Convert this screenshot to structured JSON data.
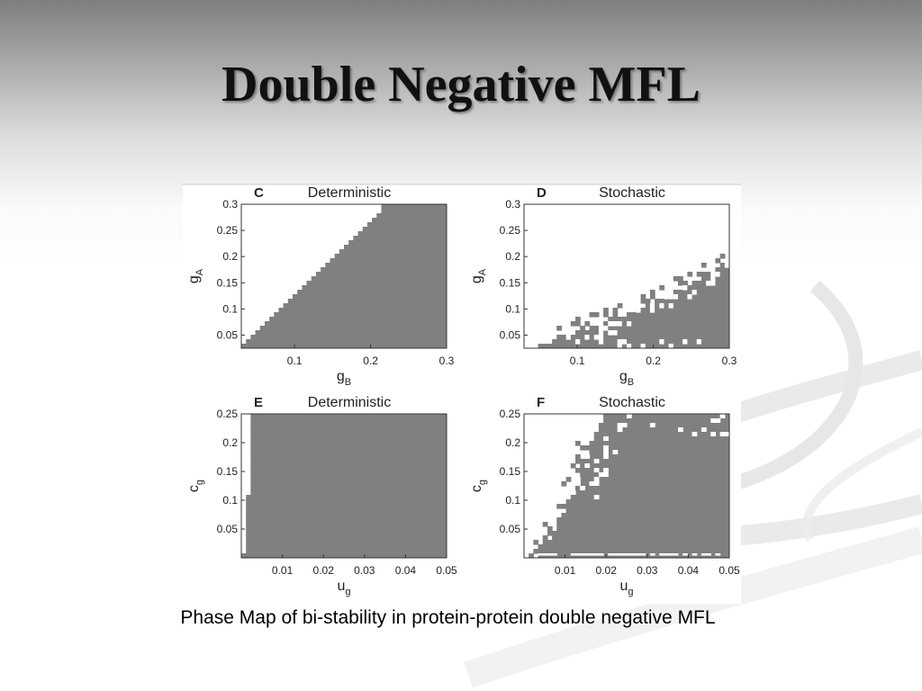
{
  "slide": {
    "title": "Double Negative MFL",
    "caption": "Phase Map of bi-stability in protein-protein double negative MFL"
  },
  "colors": {
    "region": "#808080",
    "frame": "#333333",
    "background": "#ffffff"
  },
  "chart_data": [
    {
      "type": "heatmap",
      "panel": "C",
      "title": "Deterministic",
      "xlabel": {
        "base": "g",
        "sub": "B"
      },
      "ylabel": {
        "base": "g",
        "sub": "A"
      },
      "xlim": [
        0.03,
        0.3
      ],
      "ylim": [
        0.025,
        0.3
      ],
      "xticks": [
        "0.1",
        "0.2",
        "0.3"
      ],
      "xtick_values": [
        0.1,
        0.2,
        0.3
      ],
      "yticks": [
        "0.05",
        "0.1",
        "0.15",
        "0.2",
        "0.25",
        "0.3"
      ],
      "ytick_values": [
        0.05,
        0.1,
        0.15,
        0.2,
        0.25,
        0.3
      ],
      "region": "bistable region (gray) below boundary",
      "boundary_x": [
        0.03,
        0.22
      ],
      "boundary_y": [
        0.025,
        0.3
      ]
    },
    {
      "type": "heatmap",
      "panel": "D",
      "title": "Stochastic",
      "xlabel": {
        "base": "g",
        "sub": "B"
      },
      "ylabel": {
        "base": "g",
        "sub": "A"
      },
      "xlim": [
        0.03,
        0.3
      ],
      "ylim": [
        0.025,
        0.3
      ],
      "xticks": [
        "0.1",
        "0.2",
        "0.3"
      ],
      "xtick_values": [
        0.1,
        0.2,
        0.3
      ],
      "yticks": [
        "0.05",
        "0.1",
        "0.15",
        "0.2",
        "0.25",
        "0.3"
      ],
      "ytick_values": [
        0.05,
        0.1,
        0.15,
        0.2,
        0.25,
        0.3
      ],
      "region": "bistable region (gray) below noisy boundary",
      "boundary_x": [
        0.05,
        0.15,
        0.25,
        0.3
      ],
      "boundary_y": [
        0.03,
        0.08,
        0.15,
        0.19
      ]
    },
    {
      "type": "heatmap",
      "panel": "E",
      "title": "Deterministic",
      "xlabel": {
        "base": "u",
        "sub": "g"
      },
      "ylabel": {
        "base": "c",
        "sub": "g"
      },
      "xlim": [
        0.0,
        0.05
      ],
      "ylim": [
        0.0,
        0.25
      ],
      "xticks": [
        "0.01",
        "0.02",
        "0.03",
        "0.04",
        "0.05"
      ],
      "xtick_values": [
        0.01,
        0.02,
        0.03,
        0.04,
        0.05
      ],
      "yticks": [
        "0.05",
        "0.1",
        "0.15",
        "0.2",
        "0.25"
      ],
      "ytick_values": [
        0.05,
        0.1,
        0.15,
        0.2,
        0.25
      ],
      "region": "bistable region (gray) right of boundary",
      "boundary_x": [
        0.0005,
        0.0013,
        0.0025,
        0.0025
      ],
      "boundary_y": [
        0.0,
        0.065,
        0.2,
        0.25
      ]
    },
    {
      "type": "heatmap",
      "panel": "F",
      "title": "Stochastic",
      "xlabel": {
        "base": "u",
        "sub": "g"
      },
      "ylabel": {
        "base": "c",
        "sub": "g"
      },
      "xlim": [
        0.0,
        0.05
      ],
      "ylim": [
        0.0,
        0.25
      ],
      "xticks": [
        "0.01",
        "0.02",
        "0.03",
        "0.04",
        "0.05"
      ],
      "xtick_values": [
        0.01,
        0.02,
        0.03,
        0.04,
        0.05
      ],
      "yticks": [
        "0.05",
        "0.1",
        "0.15",
        "0.2",
        "0.25"
      ],
      "ytick_values": [
        0.05,
        0.1,
        0.15,
        0.2,
        0.25
      ],
      "region": "bistable region (gray) right of noisy boundary",
      "boundary_x": [
        0.003,
        0.008,
        0.013,
        0.017,
        0.02
      ],
      "boundary_y": [
        0.0,
        0.05,
        0.14,
        0.21,
        0.25
      ]
    }
  ]
}
